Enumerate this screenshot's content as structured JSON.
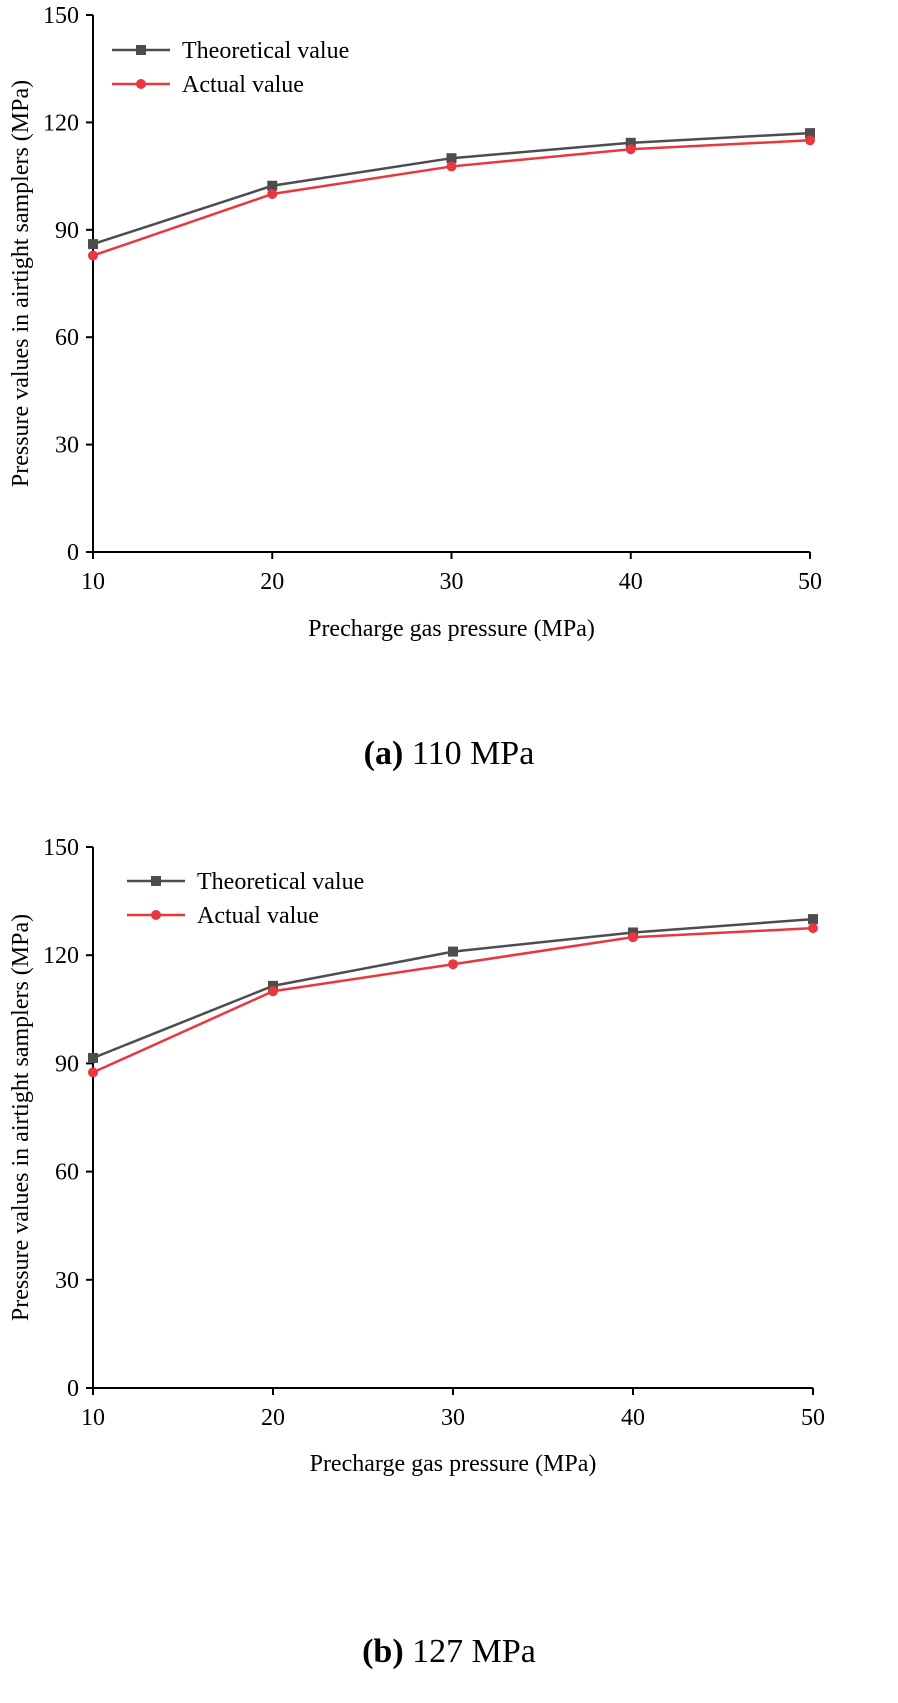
{
  "chart_data": [
    {
      "type": "line",
      "caption_letter": "(a)",
      "caption_text": "110 MPa",
      "xlabel": "Precharge gas pressure (MPa)",
      "ylabel": "Pressure values in airtight samplers (MPa)",
      "x": [
        10,
        20,
        30,
        40,
        50
      ],
      "xlim": [
        10,
        50
      ],
      "ylim": [
        0,
        150
      ],
      "xticks": [
        "10",
        "20",
        "30",
        "40",
        "50"
      ],
      "yticks": [
        "0",
        "30",
        "60",
        "90",
        "120",
        "150"
      ],
      "grid": false,
      "legend_position": "top-left",
      "series": [
        {
          "name": "Theoretical value",
          "color": "#4d4d4d",
          "marker": "square",
          "values": [
            86,
            102.3,
            110,
            114.3,
            117
          ]
        },
        {
          "name": "Actual value",
          "color": "#e8383d",
          "marker": "circle",
          "values": [
            82.8,
            100,
            107.7,
            112.5,
            115
          ]
        }
      ]
    },
    {
      "type": "line",
      "caption_letter": "(b)",
      "caption_text": "127 MPa",
      "xlabel": "Precharge gas pressure (MPa)",
      "ylabel": "Pressure values in airtight samplers (MPa)",
      "x": [
        10,
        20,
        30,
        40,
        50
      ],
      "xlim": [
        10,
        50
      ],
      "ylim": [
        0,
        150
      ],
      "xticks": [
        "10",
        "20",
        "30",
        "40",
        "50"
      ],
      "yticks": [
        "0",
        "30",
        "60",
        "90",
        "120",
        "150"
      ],
      "grid": false,
      "legend_position": "top-left",
      "series": [
        {
          "name": "Theoretical value",
          "color": "#4d4d4d",
          "marker": "square",
          "values": [
            91.5,
            111.5,
            121,
            126.3,
            130
          ]
        },
        {
          "name": "Actual value",
          "color": "#e8383d",
          "marker": "circle",
          "values": [
            87.5,
            110,
            117.5,
            125,
            127.5
          ]
        }
      ]
    }
  ]
}
